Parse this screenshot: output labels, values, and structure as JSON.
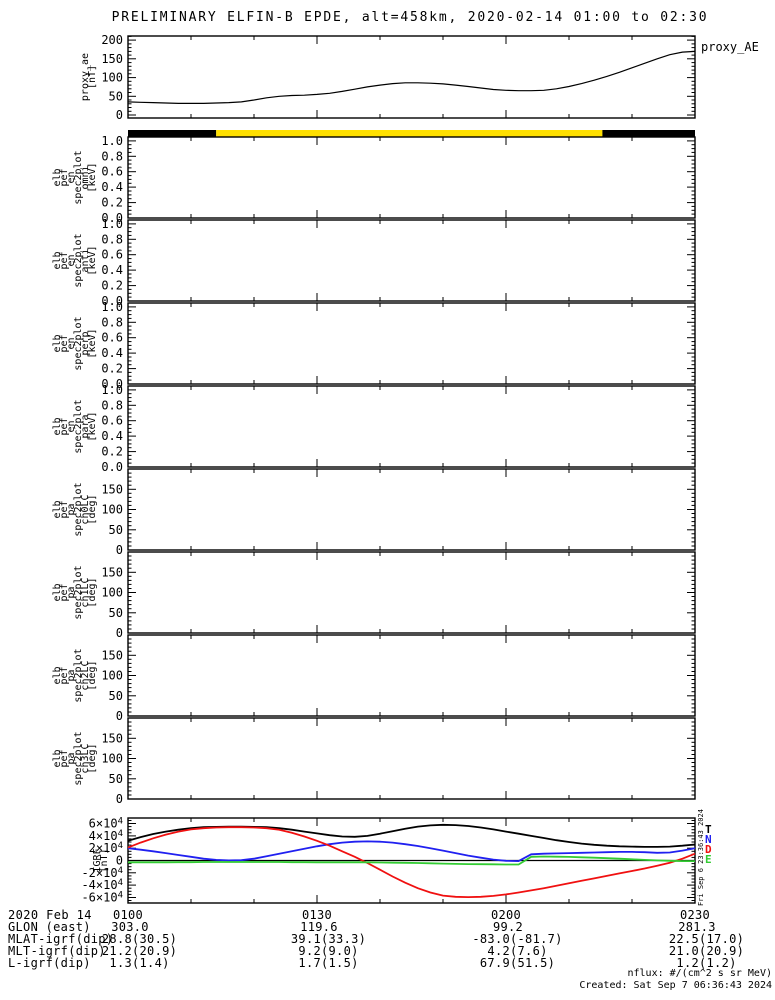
{
  "title": "PRELIMINARY ELFIN-B EPDE, alt=458km, 2020-02-14 01:00 to 02:30",
  "proxy_right_label": "proxy_AE",
  "colors": {
    "foreground": "#000000",
    "sunlit_yellow": "#ffe000",
    "igrf_T": "#000000",
    "igrf_N": "#2020f0",
    "igrf_D": "#f01010",
    "igrf_E": "#33cc33"
  },
  "chart_data": {
    "type": "line",
    "title": "PRELIMINARY ELFIN-B EPDE, alt=458km, 2020-02-14 01:00 to 02:30",
    "time_axis": {
      "start_label": "0100",
      "end_label": "0230",
      "range_minutes": [
        0,
        90
      ],
      "major_tick_minutes": 30,
      "minor_tick_minutes": 10,
      "tick_labels": [
        "0100",
        "0130",
        "0200",
        "0230"
      ]
    },
    "panels": [
      {
        "id": "proxy_ae",
        "kind": "line",
        "left_words": [
          "proxy_ae",
          "[nT]"
        ],
        "right_label": "proxy_AE",
        "yrange": [
          -8,
          211
        ],
        "ymajor": 50,
        "yminor": 10,
        "yticks": [
          {
            "v": 0,
            "label": "0"
          },
          {
            "v": 50,
            "label": "50"
          },
          {
            "v": 100,
            "label": "100"
          },
          {
            "v": 150,
            "label": "150"
          },
          {
            "v": 200,
            "label": "200"
          }
        ],
        "series": [
          {
            "name": "proxy_AE",
            "color": "#000000",
            "x_step_min": 2,
            "values": [
              35,
              34,
              33,
              32,
              31,
              31,
              31,
              32,
              33,
              35,
              40,
              46,
              50,
              52,
              53,
              55,
              58,
              63,
              69,
              75,
              80,
              84,
              86,
              86,
              85,
              83,
              80,
              76,
              72,
              68,
              66,
              65,
              65,
              66,
              70,
              76,
              84,
              93,
              103,
              114,
              126,
              138,
              150,
              161,
              168,
              170
            ]
          }
        ]
      },
      {
        "id": "sun_bar",
        "kind": "bar-strip",
        "meaning": "sunlight indicator strip",
        "segments": [
          {
            "from_min": 0,
            "to_min": 14,
            "color": "#000000"
          },
          {
            "from_min": 14,
            "to_min": 75.3,
            "color": "#ffe000"
          },
          {
            "from_min": 75.3,
            "to_min": 90,
            "color": "#000000"
          }
        ]
      },
      {
        "id": "omni",
        "kind": "empty",
        "left_words": [
          "elb",
          "pef",
          "en",
          "spec2plot",
          "omni",
          "[keV]"
        ],
        "yrange": [
          0,
          1.05
        ],
        "ymajor": 0.2,
        "yminor": 0.05,
        "yticks": [
          {
            "v": 0.0,
            "label": "0.0"
          },
          {
            "v": 0.2,
            "label": "0.2"
          },
          {
            "v": 0.4,
            "label": "0.4"
          },
          {
            "v": 0.6,
            "label": "0.6"
          },
          {
            "v": 0.8,
            "label": "0.8"
          },
          {
            "v": 1.0,
            "label": "1.0"
          }
        ]
      },
      {
        "id": "anti",
        "kind": "empty",
        "left_words": [
          "elb",
          "pef",
          "en",
          "spec2plot",
          "anti",
          "[keV]"
        ],
        "yrange": [
          0,
          1.05
        ],
        "ymajor": 0.2,
        "yminor": 0.05,
        "yticks": [
          {
            "v": 0.0,
            "label": "0.0"
          },
          {
            "v": 0.2,
            "label": "0.2"
          },
          {
            "v": 0.4,
            "label": "0.4"
          },
          {
            "v": 0.6,
            "label": "0.6"
          },
          {
            "v": 0.8,
            "label": "0.8"
          },
          {
            "v": 1.0,
            "label": "1.0"
          }
        ]
      },
      {
        "id": "perp",
        "kind": "empty",
        "left_words": [
          "elb",
          "pef",
          "en",
          "spec2plot",
          "perp",
          "[keV]"
        ],
        "yrange": [
          0,
          1.05
        ],
        "ymajor": 0.2,
        "yminor": 0.05,
        "yticks": [
          {
            "v": 0.0,
            "label": "0.0"
          },
          {
            "v": 0.2,
            "label": "0.2"
          },
          {
            "v": 0.4,
            "label": "0.4"
          },
          {
            "v": 0.6,
            "label": "0.6"
          },
          {
            "v": 0.8,
            "label": "0.8"
          },
          {
            "v": 1.0,
            "label": "1.0"
          }
        ]
      },
      {
        "id": "para",
        "kind": "empty",
        "left_words": [
          "elb",
          "pef",
          "en",
          "spec2plot",
          "para",
          "[keV]"
        ],
        "yrange": [
          0,
          1.05
        ],
        "ymajor": 0.2,
        "yminor": 0.05,
        "yticks": [
          {
            "v": 0.0,
            "label": "0.0"
          },
          {
            "v": 0.2,
            "label": "0.2"
          },
          {
            "v": 0.4,
            "label": "0.4"
          },
          {
            "v": 0.6,
            "label": "0.6"
          },
          {
            "v": 0.8,
            "label": "0.8"
          },
          {
            "v": 1.0,
            "label": "1.0"
          }
        ]
      },
      {
        "id": "ch0LC",
        "kind": "empty",
        "left_words": [
          "elb",
          "pef",
          "pa",
          "spec2plot",
          "ch0LC",
          "[deg]"
        ],
        "yrange": [
          0,
          200
        ],
        "ymajor": 50,
        "yminor": 10,
        "yticks": [
          {
            "v": 0,
            "label": "0"
          },
          {
            "v": 50,
            "label": "50"
          },
          {
            "v": 100,
            "label": "100"
          },
          {
            "v": 150,
            "label": "150"
          }
        ]
      },
      {
        "id": "ch1LC",
        "kind": "empty",
        "left_words": [
          "elb",
          "pef",
          "pa",
          "spec2plot",
          "ch1LC",
          "[deg]"
        ],
        "yrange": [
          0,
          200
        ],
        "ymajor": 50,
        "yminor": 10,
        "yticks": [
          {
            "v": 0,
            "label": "0"
          },
          {
            "v": 50,
            "label": "50"
          },
          {
            "v": 100,
            "label": "100"
          },
          {
            "v": 150,
            "label": "150"
          }
        ]
      },
      {
        "id": "ch2LC",
        "kind": "empty",
        "left_words": [
          "elb",
          "pef",
          "pa",
          "spec2plot",
          "ch2LC",
          "[deg]"
        ],
        "yrange": [
          0,
          200
        ],
        "ymajor": 50,
        "yminor": 10,
        "yticks": [
          {
            "v": 0,
            "label": "0"
          },
          {
            "v": 50,
            "label": "50"
          },
          {
            "v": 100,
            "label": "100"
          },
          {
            "v": 150,
            "label": "150"
          }
        ]
      },
      {
        "id": "ch3LC",
        "kind": "empty",
        "left_words": [
          "elb",
          "pef",
          "pa",
          "spec2plot",
          "ch3LC",
          "[deg]"
        ],
        "yrange": [
          0,
          200
        ],
        "ymajor": 50,
        "yminor": 10,
        "yticks": [
          {
            "v": 0,
            "label": "0"
          },
          {
            "v": 50,
            "label": "50"
          },
          {
            "v": 100,
            "label": "100"
          },
          {
            "v": 150,
            "label": "150"
          }
        ]
      },
      {
        "id": "igrf",
        "kind": "line",
        "left_words": [
          "IGRF",
          "[nT]"
        ],
        "units_note": "series values in 10^4 nT",
        "yrange": [
          -6.9,
          6.9
        ],
        "ymajor": 2,
        "yminor": 0.5,
        "zero_line": true,
        "yticks": [
          {
            "v": 6,
            "label": "6×10^4"
          },
          {
            "v": 4,
            "label": "4×10^4"
          },
          {
            "v": 2,
            "label": "2×10^4"
          },
          {
            "v": 0,
            "label": "0"
          },
          {
            "v": -2,
            "label": "-2×10^4"
          },
          {
            "v": -4,
            "label": "-4×10^4"
          },
          {
            "v": -6,
            "label": "-6×10^4"
          }
        ],
        "legend": [
          {
            "ch": "T",
            "color": "#000000"
          },
          {
            "ch": "N",
            "color": "#2020f0"
          },
          {
            "ch": "D",
            "color": "#f01010"
          },
          {
            "ch": "E",
            "color": "#33cc33"
          }
        ],
        "series": [
          {
            "name": "T",
            "color": "#000000",
            "x_step_min": 2,
            "values": [
              3.2,
              3.8,
              4.3,
              4.7,
              5.0,
              5.25,
              5.4,
              5.45,
              5.5,
              5.5,
              5.45,
              5.4,
              5.25,
              5.0,
              4.7,
              4.4,
              4.1,
              3.9,
              3.85,
              4.0,
              4.35,
              4.75,
              5.15,
              5.5,
              5.7,
              5.8,
              5.75,
              5.6,
              5.35,
              5.05,
              4.7,
              4.35,
              4.0,
              3.65,
              3.3,
              3.0,
              2.75,
              2.55,
              2.4,
              2.3,
              2.25,
              2.2,
              2.2,
              2.25,
              2.4,
              2.6
            ]
          },
          {
            "name": "N",
            "color": "#2020f0",
            "x_step_min": 2,
            "values": [
              2.0,
              1.75,
              1.5,
              1.2,
              0.9,
              0.6,
              0.3,
              0.1,
              0.02,
              0.05,
              0.3,
              0.7,
              1.1,
              1.5,
              1.9,
              2.3,
              2.65,
              2.9,
              3.05,
              3.1,
              3.05,
              2.9,
              2.65,
              2.35,
              2.0,
              1.6,
              1.2,
              0.8,
              0.45,
              0.15,
              -0.05,
              -0.1,
              1.0,
              1.1,
              1.15,
              1.2,
              1.25,
              1.3,
              1.35,
              1.4,
              1.4,
              1.35,
              1.25,
              1.3,
              1.6,
              2.0
            ]
          },
          {
            "name": "D",
            "color": "#f01010",
            "x_step_min": 2,
            "values": [
              2.1,
              2.9,
              3.6,
              4.2,
              4.7,
              5.05,
              5.25,
              5.35,
              5.4,
              5.4,
              5.35,
              5.25,
              5.0,
              4.5,
              3.9,
              3.2,
              2.4,
              1.5,
              0.6,
              -0.4,
              -1.5,
              -2.6,
              -3.6,
              -4.5,
              -5.2,
              -5.7,
              -5.9,
              -5.95,
              -5.9,
              -5.75,
              -5.5,
              -5.2,
              -4.85,
              -4.5,
              -4.1,
              -3.7,
              -3.3,
              -2.9,
              -2.5,
              -2.1,
              -1.7,
              -1.3,
              -0.85,
              -0.35,
              0.3,
              1.1
            ]
          },
          {
            "name": "E",
            "color": "#33cc33",
            "x_step_min": 2,
            "values": [
              -0.3,
              -0.3,
              -0.3,
              -0.3,
              -0.28,
              -0.28,
              -0.25,
              -0.25,
              -0.25,
              -0.25,
              -0.25,
              -0.25,
              -0.25,
              -0.28,
              -0.28,
              -0.3,
              -0.3,
              -0.3,
              -0.3,
              -0.3,
              -0.32,
              -0.35,
              -0.38,
              -0.4,
              -0.45,
              -0.5,
              -0.55,
              -0.58,
              -0.6,
              -0.62,
              -0.65,
              -0.65,
              0.6,
              0.65,
              0.62,
              0.58,
              0.52,
              0.45,
              0.38,
              0.3,
              0.2,
              0.1,
              0.02,
              -0.05,
              -0.1,
              -0.1
            ]
          }
        ]
      }
    ]
  },
  "footer": {
    "date_label": "2020 Feb 14",
    "time_ticks": [
      "0100",
      "0130",
      "0200",
      "0230"
    ],
    "rows": [
      {
        "label": "GLON (east)",
        "values": [
          "303.0",
          "119.6",
          "99.2",
          "281.3"
        ]
      },
      {
        "label": "MLAT-igrf(dip)",
        "values": [
          "28.8(30.5)",
          "39.1(33.3)",
          "-83.0(-81.7)",
          "22.5(17.0)"
        ]
      },
      {
        "label": "MLT-igrf(dip)",
        "values": [
          "21.2(20.9)",
          "9.2(9.0)",
          "4.2(7.6)",
          "21.0(20.9)"
        ]
      },
      {
        "label": "L-igrf(dip)",
        "values": [
          "1.3(1.4)",
          "1.7(1.5)",
          "67.9(51.5)",
          "1.2(1.2)"
        ]
      }
    ]
  },
  "watermarks": {
    "nflux": "nflux: #/(cm^2 s sr MeV)",
    "created": "Created: Sat Sep  7 06:36:43 2024",
    "side_created": "Fri Sep 6 23:36:43 2024"
  }
}
